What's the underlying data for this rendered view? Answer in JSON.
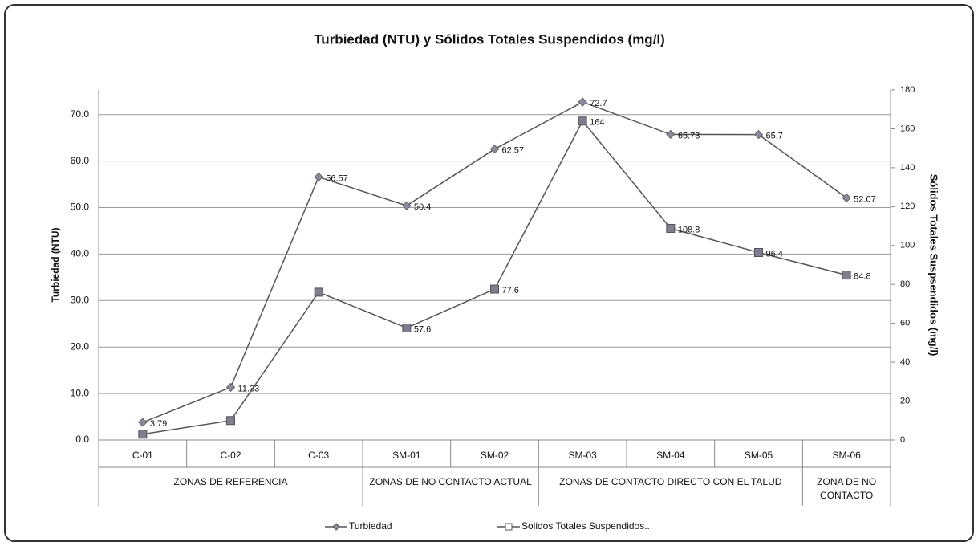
{
  "chart_data": {
    "type": "line",
    "title": "Turbiedad (NTU) y Sólidos Totales Suspendidos (mg/l)",
    "ylabel": "Turbiedad (NTU)",
    "y2label": "Sólidos Totales Suspsendidos (mg/l)",
    "categories": [
      "C-01",
      "C-02",
      "C-03",
      "SM-01",
      "SM-02",
      "SM-03",
      "SM-04",
      "SM-05",
      "SM-06"
    ],
    "groups": [
      {
        "label": "ZONAS DE  REFERENCIA",
        "span": 3
      },
      {
        "label": "ZONAS DE NO CONTACTO ACTUAL",
        "span": 2
      },
      {
        "label": "ZONAS DE CONTACTO DIRECTO CON EL TALUD",
        "span": 3
      },
      {
        "label": "ZONA DE NO CONTACTO",
        "span": 1
      }
    ],
    "series": [
      {
        "name": "Turbiedad",
        "color": "#8a8a9a",
        "marker": "diamond",
        "values": [
          3.79,
          11.33,
          56.57,
          50.4,
          62.57,
          72.7,
          65.73,
          65.7,
          52.07
        ]
      },
      {
        "name": "Solidos Totales Suspendidos...",
        "color": "#7e7e90",
        "marker": "square",
        "axis": "y2",
        "values": [
          3,
          10,
          76,
          57.6,
          77.6,
          164,
          108.8,
          96.4,
          84.8
        ],
        "value_labels": [
          null,
          null,
          null,
          "57.6",
          "77.6",
          "164",
          "108.8",
          "96.4",
          "84.8"
        ]
      }
    ],
    "ylim": [
      0,
      75.3
    ],
    "yticks": [
      {
        "value": 0,
        "label": "0.0"
      },
      {
        "value": 10,
        "label": "10.0"
      },
      {
        "value": 20,
        "label": "20.0"
      },
      {
        "value": 30,
        "label": "30.0"
      },
      {
        "value": 40,
        "label": "40.0"
      },
      {
        "value": 50,
        "label": "50.0"
      },
      {
        "value": 60,
        "label": "60.0"
      },
      {
        "value": 70,
        "label": "70.0"
      }
    ],
    "y2lim": [
      0,
      180
    ],
    "y2ticks": [
      0,
      20,
      40,
      60,
      80,
      100,
      120,
      140,
      160,
      180
    ],
    "grid": true,
    "legend": "bottom"
  }
}
